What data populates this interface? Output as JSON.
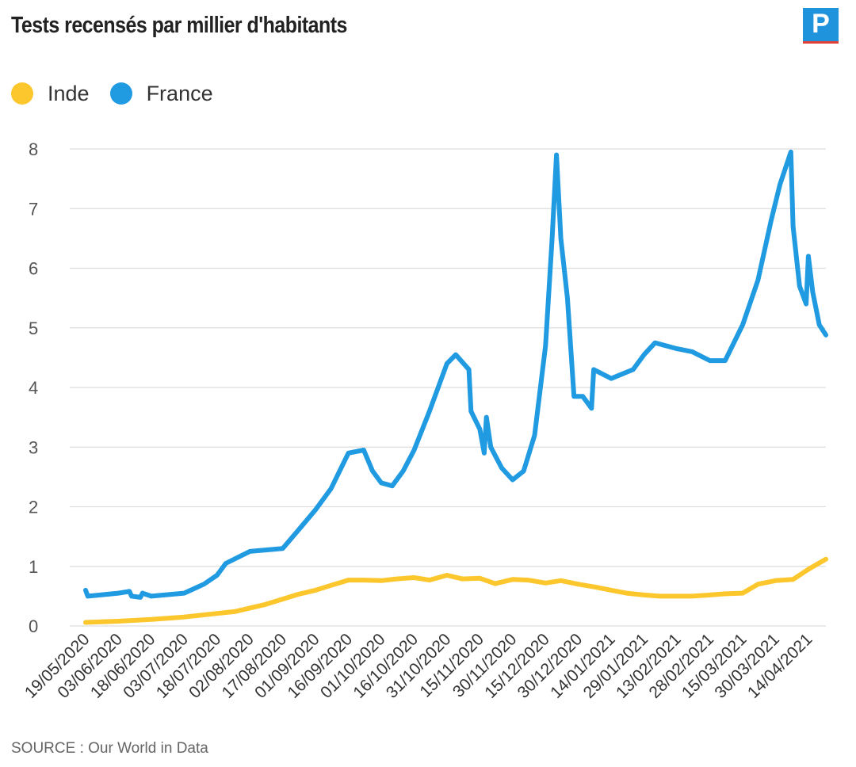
{
  "header": {
    "title": "Tests recensés par millier d'habitants",
    "logo_letter": "P"
  },
  "source": "SOURCE : Our World in Data",
  "colors": {
    "inde": "#fcc62d",
    "france": "#209ae0",
    "grid": "#dddddd",
    "logo_bg": "#1f93dc",
    "logo_bar": "#e2403a"
  },
  "chart_data": {
    "type": "line",
    "x_ticks": [
      "19/05/2020",
      "03/06/2020",
      "18/06/2020",
      "03/07/2020",
      "18/07/2020",
      "02/08/2020",
      "17/08/2020",
      "01/09/2020",
      "16/09/2020",
      "01/10/2020",
      "16/10/2020",
      "31/10/2020",
      "15/11/2020",
      "30/11/2020",
      "15/12/2020",
      "30/12/2020",
      "14/01/2021",
      "29/01/2021",
      "13/02/2021",
      "28/02/2021",
      "15/03/2021",
      "30/03/2021",
      "14/04/2021"
    ],
    "x_start": "19/05/2020",
    "x_end": "22/04/2021",
    "ylim": [
      0,
      8
    ],
    "y_ticks": [
      0,
      1,
      2,
      3,
      4,
      5,
      6,
      7,
      8
    ],
    "grid": true,
    "legend_position": "top-left",
    "series": [
      {
        "name": "Inde",
        "color": "#fcc62d",
        "points": [
          [
            "19/05/2020",
            0.06
          ],
          [
            "03/06/2020",
            0.08
          ],
          [
            "18/06/2020",
            0.11
          ],
          [
            "03/07/2020",
            0.15
          ],
          [
            "18/07/2020",
            0.21
          ],
          [
            "26/07/2020",
            0.24
          ],
          [
            "02/08/2020",
            0.3
          ],
          [
            "09/08/2020",
            0.36
          ],
          [
            "17/08/2020",
            0.45
          ],
          [
            "24/08/2020",
            0.53
          ],
          [
            "01/09/2020",
            0.6
          ],
          [
            "08/09/2020",
            0.68
          ],
          [
            "16/09/2020",
            0.77
          ],
          [
            "23/09/2020",
            0.77
          ],
          [
            "01/10/2020",
            0.76
          ],
          [
            "08/10/2020",
            0.79
          ],
          [
            "16/10/2020",
            0.81
          ],
          [
            "23/10/2020",
            0.77
          ],
          [
            "31/10/2020",
            0.85
          ],
          [
            "07/11/2020",
            0.79
          ],
          [
            "15/11/2020",
            0.8
          ],
          [
            "22/11/2020",
            0.71
          ],
          [
            "30/11/2020",
            0.78
          ],
          [
            "07/12/2020",
            0.77
          ],
          [
            "15/12/2020",
            0.72
          ],
          [
            "22/12/2020",
            0.76
          ],
          [
            "30/12/2020",
            0.7
          ],
          [
            "07/01/2021",
            0.65
          ],
          [
            "14/01/2021",
            0.6
          ],
          [
            "21/01/2021",
            0.55
          ],
          [
            "29/01/2021",
            0.52
          ],
          [
            "05/02/2021",
            0.5
          ],
          [
            "13/02/2021",
            0.5
          ],
          [
            "20/02/2021",
            0.5
          ],
          [
            "28/02/2021",
            0.52
          ],
          [
            "07/03/2021",
            0.54
          ],
          [
            "15/03/2021",
            0.55
          ],
          [
            "22/03/2021",
            0.7
          ],
          [
            "30/03/2021",
            0.76
          ],
          [
            "07/04/2021",
            0.78
          ],
          [
            "14/04/2021",
            0.95
          ],
          [
            "22/04/2021",
            1.12
          ]
        ]
      },
      {
        "name": "France",
        "color": "#209ae0",
        "points": [
          [
            "19/05/2020",
            0.6
          ],
          [
            "20/05/2020",
            0.5
          ],
          [
            "03/06/2020",
            0.55
          ],
          [
            "08/06/2020",
            0.58
          ],
          [
            "09/06/2020",
            0.5
          ],
          [
            "13/06/2020",
            0.48
          ],
          [
            "14/06/2020",
            0.55
          ],
          [
            "18/06/2020",
            0.5
          ],
          [
            "03/07/2020",
            0.55
          ],
          [
            "12/07/2020",
            0.7
          ],
          [
            "18/07/2020",
            0.85
          ],
          [
            "22/07/2020",
            1.05
          ],
          [
            "02/08/2020",
            1.25
          ],
          [
            "17/08/2020",
            1.3
          ],
          [
            "24/08/2020",
            1.6
          ],
          [
            "01/09/2020",
            1.95
          ],
          [
            "08/09/2020",
            2.3
          ],
          [
            "16/09/2020",
            2.9
          ],
          [
            "23/09/2020",
            2.95
          ],
          [
            "27/09/2020",
            2.6
          ],
          [
            "01/10/2020",
            2.4
          ],
          [
            "06/10/2020",
            2.35
          ],
          [
            "11/10/2020",
            2.6
          ],
          [
            "16/10/2020",
            2.95
          ],
          [
            "23/10/2020",
            3.6
          ],
          [
            "31/10/2020",
            4.4
          ],
          [
            "04/11/2020",
            4.55
          ],
          [
            "10/11/2020",
            4.3
          ],
          [
            "11/11/2020",
            3.6
          ],
          [
            "15/11/2020",
            3.3
          ],
          [
            "17/11/2020",
            2.9
          ],
          [
            "18/11/2020",
            3.5
          ],
          [
            "20/11/2020",
            3.0
          ],
          [
            "25/11/2020",
            2.65
          ],
          [
            "30/11/2020",
            2.45
          ],
          [
            "05/12/2020",
            2.6
          ],
          [
            "10/12/2020",
            3.2
          ],
          [
            "15/12/2020",
            4.7
          ],
          [
            "18/12/2020",
            6.5
          ],
          [
            "20/12/2020",
            7.9
          ],
          [
            "22/12/2020",
            6.5
          ],
          [
            "25/12/2020",
            5.5
          ],
          [
            "28/12/2020",
            3.85
          ],
          [
            "01/01/2021",
            3.85
          ],
          [
            "05/01/2021",
            3.65
          ],
          [
            "06/01/2021",
            4.3
          ],
          [
            "14/01/2021",
            4.15
          ],
          [
            "24/01/2021",
            4.3
          ],
          [
            "29/01/2021",
            4.55
          ],
          [
            "03/02/2021",
            4.75
          ],
          [
            "13/02/2021",
            4.65
          ],
          [
            "20/02/2021",
            4.6
          ],
          [
            "28/02/2021",
            4.45
          ],
          [
            "07/03/2021",
            4.45
          ],
          [
            "15/03/2021",
            5.05
          ],
          [
            "22/03/2021",
            5.8
          ],
          [
            "28/03/2021",
            6.8
          ],
          [
            "01/04/2021",
            7.4
          ],
          [
            "06/04/2021",
            7.95
          ],
          [
            "07/04/2021",
            6.7
          ],
          [
            "10/04/2021",
            5.7
          ],
          [
            "13/04/2021",
            5.4
          ],
          [
            "14/04/2021",
            6.2
          ],
          [
            "16/04/2021",
            5.6
          ],
          [
            "19/04/2021",
            5.05
          ],
          [
            "22/04/2021",
            4.88
          ]
        ]
      }
    ]
  }
}
